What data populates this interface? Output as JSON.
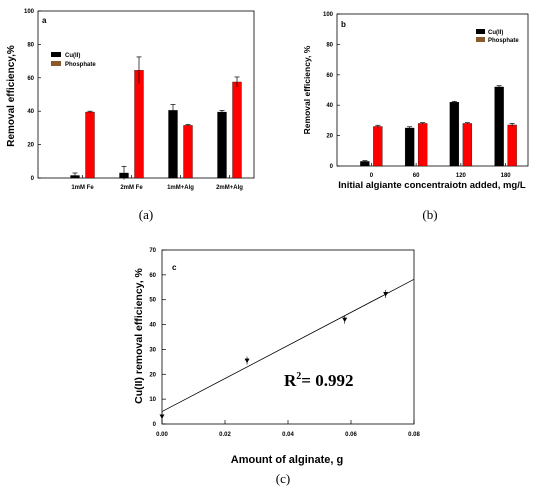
{
  "colors": {
    "cu": "#000000",
    "phosphate": "#ff0000",
    "phosphate_legend": "#8b5a2b",
    "axis": "#000000"
  },
  "captions": {
    "a": "(a)",
    "b": "(b)",
    "c": "(c)"
  },
  "r2": {
    "main": "R",
    "sup": "2",
    "value": "= 0.992"
  },
  "chart_data": [
    {
      "type": "bar",
      "panel_label": "a",
      "title": "",
      "xlabel": "",
      "ylabel": "Removal efficiency,%",
      "ylim": [
        0,
        100
      ],
      "yticks": [
        "0",
        "20",
        "40",
        "60",
        "80",
        "100"
      ],
      "categories": [
        "1mM Fe",
        "2mM Fe",
        "1mM+Alg",
        "2mM+Alg"
      ],
      "legend": [
        "Cu(II)",
        "Phosphate"
      ],
      "legend_position": "top-left",
      "series": [
        {
          "name": "Cu(II)",
          "values": [
            1.5,
            3,
            40.5,
            39.5
          ],
          "errors": [
            1.5,
            4,
            3.5,
            1
          ]
        },
        {
          "name": "Phosphate",
          "values": [
            39.5,
            64.5,
            31.5,
            57.5
          ],
          "errors": [
            0.5,
            8,
            0.5,
            3
          ]
        }
      ]
    },
    {
      "type": "bar",
      "panel_label": "b",
      "title": "",
      "xlabel": "Initial algiante concentraiotn added, mg/L",
      "ylabel": "Removal efficiency, %",
      "ylim": [
        0,
        100
      ],
      "yticks": [
        "0",
        "20",
        "40",
        "60",
        "80",
        "100"
      ],
      "categories": [
        "0",
        "60",
        "120",
        "180"
      ],
      "legend": [
        "Cu(II)",
        "Phosphate"
      ],
      "legend_position": "top-right",
      "series": [
        {
          "name": "Cu(II)",
          "values": [
            3,
            25,
            42,
            52
          ],
          "errors": [
            0.5,
            0.8,
            0.5,
            0.8
          ]
        },
        {
          "name": "Phosphate",
          "values": [
            26,
            28,
            28,
            27
          ],
          "errors": [
            0.8,
            0.5,
            0.5,
            1
          ]
        }
      ]
    },
    {
      "type": "scatter",
      "panel_label": "c",
      "title": "",
      "xlabel": "Amount of alginate, g",
      "ylabel": "Cu(II) removal efficiency, %",
      "xlim": [
        0,
        0.08
      ],
      "ylim": [
        0,
        70
      ],
      "xticks": [
        "0.00",
        "0.02",
        "0.04",
        "0.06",
        "0.08"
      ],
      "yticks": [
        "0",
        "10",
        "20",
        "30",
        "40",
        "50",
        "60",
        "70"
      ],
      "points": [
        {
          "x": 0,
          "y": 3
        },
        {
          "x": 0.027,
          "y": 25.5
        },
        {
          "x": 0.058,
          "y": 42
        },
        {
          "x": 0.071,
          "y": 52.3
        }
      ],
      "fit_line": {
        "slope": 665,
        "intercept": 5
      },
      "annotation": "R2= 0.992"
    }
  ]
}
